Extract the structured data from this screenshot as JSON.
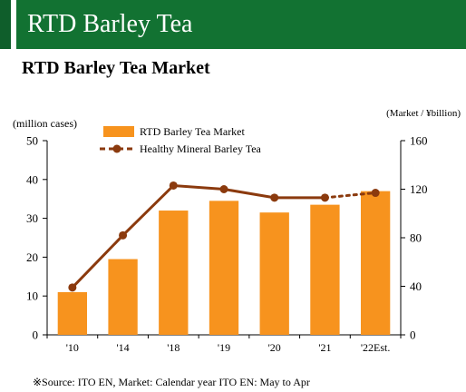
{
  "banner": {
    "title": "RTD Barley Tea"
  },
  "footer": {
    "source": "※Source: ITO EN, Market: Calendar year   ITO EN: May to Apr"
  },
  "colors": {
    "banner": "#127232",
    "bar": "#F7931E",
    "line": "#8B3A0E"
  },
  "chart_data": {
    "type": "bar",
    "title": "RTD Barley Tea Market",
    "categories": [
      "'10",
      "'14",
      "'18",
      "'19",
      "'20",
      "'21",
      "'22Est."
    ],
    "ylabel_left": "(million cases)",
    "ylabel_right": "(Market / ¥billion)",
    "ylim_left": [
      0,
      50
    ],
    "yticks_left": [
      0,
      10,
      20,
      30,
      40,
      50
    ],
    "ylim_right": [
      0,
      160
    ],
    "yticks_right": [
      0,
      40,
      80,
      120,
      160
    ],
    "grid": false,
    "legend_position": "top-left",
    "series": [
      {
        "name": "RTD Barley Tea Market",
        "type": "bar",
        "axis": "left",
        "values": [
          11,
          19.5,
          32,
          34.5,
          31.5,
          33.5,
          37
        ]
      },
      {
        "name": "Healthy Mineral Barley Tea",
        "type": "line",
        "axis": "right",
        "values": [
          39,
          82,
          123,
          120,
          113,
          113,
          117
        ],
        "estimate_from_index": 5
      }
    ]
  }
}
